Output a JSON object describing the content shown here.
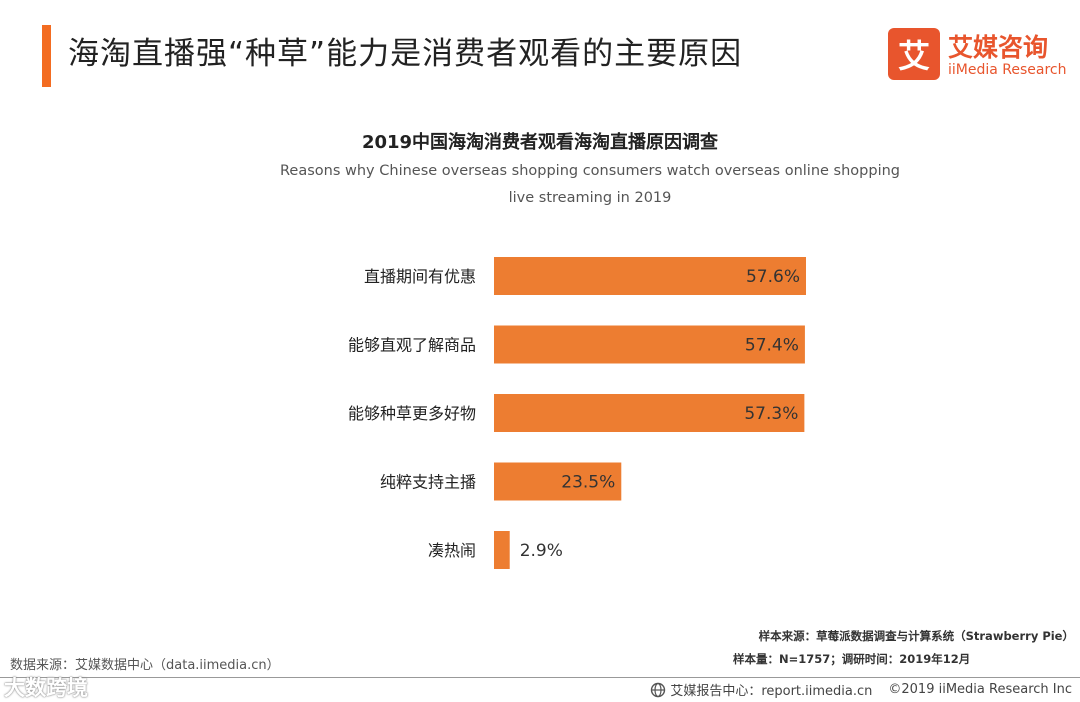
{
  "header": {
    "title": "海淘直播强“种草”能力是消费者观看的主要原因",
    "accent_color": "#f36c21"
  },
  "brand": {
    "logo_glyph": "艾",
    "name_cn": "艾媒咨询",
    "name_en": "iiMedia Research",
    "color": "#e8552d"
  },
  "chart_data": {
    "type": "bar",
    "orientation": "horizontal",
    "title": "2019中国海淘消费者观看海淘直播原因调查",
    "subtitle": "Reasons why Chinese overseas shopping consumers watch overseas online shopping live streaming in 2019",
    "categories": [
      "直播期间有优惠",
      "能够直观了解商品",
      "能够种草更多好物",
      "纯粹支持主播",
      "凑热闹"
    ],
    "values": [
      57.6,
      57.4,
      57.3,
      23.5,
      2.9
    ],
    "value_labels": [
      "57.6%",
      "57.4%",
      "57.3%",
      "23.5%",
      "2.9%"
    ],
    "unit": "%",
    "bar_color": "#ed7d31",
    "xlim": [
      0,
      100
    ],
    "grid": false,
    "legend": "none"
  },
  "footer": {
    "data_source": "数据来源：艾媒数据中心（data.iimedia.cn）",
    "sample_source": "样本来源：草莓派数据调查与计算系统（Strawberry Pie）",
    "sample_size": "样本量：N=1757；调研时间：2019年12月",
    "watermark": "大数跨境",
    "report_center": "艾媒报告中心：report.iimedia.cn",
    "copyright": "©2019  iiMedia Research  Inc"
  }
}
